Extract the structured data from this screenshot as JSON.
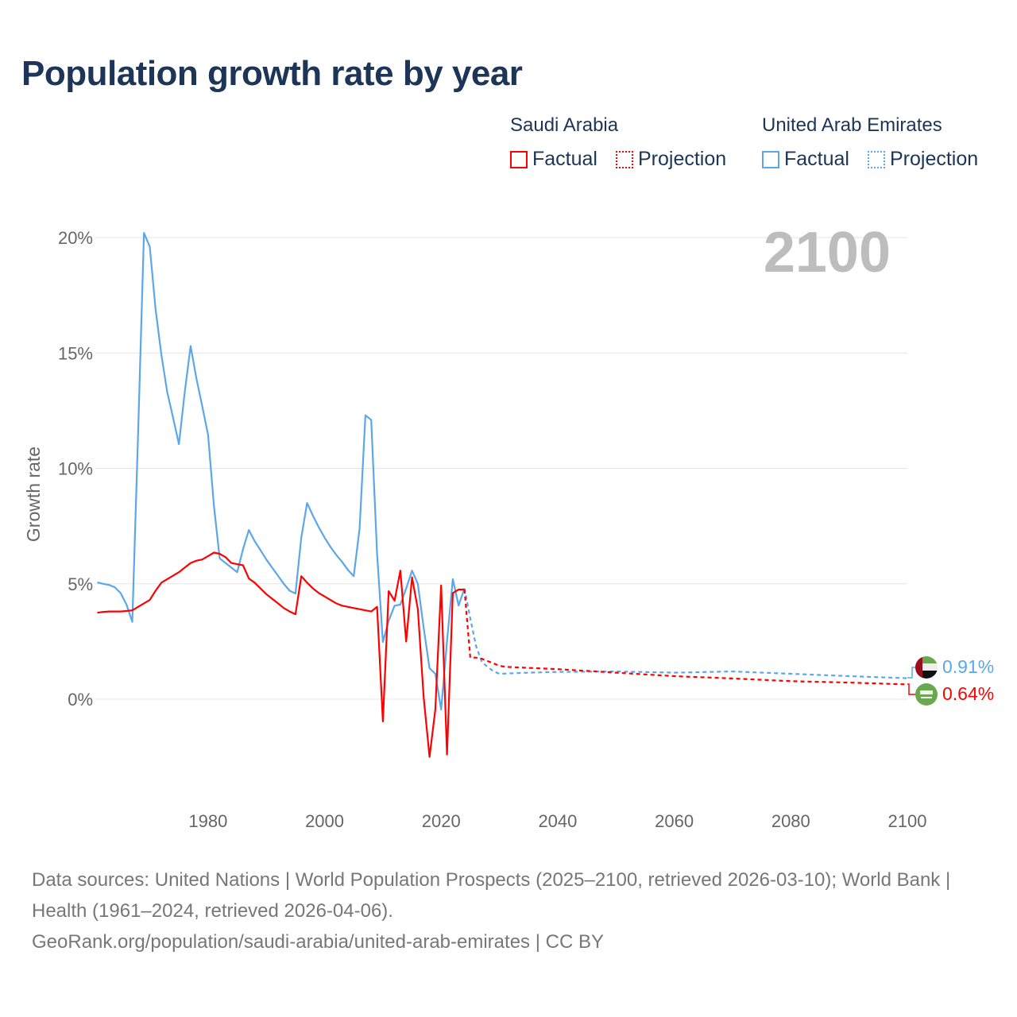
{
  "title": "Population growth rate by year",
  "legend": {
    "groups": [
      {
        "name": "Saudi Arabia",
        "color": "#ff0000",
        "factual": "Factual",
        "projection": "Projection"
      },
      {
        "name": "United Arab Emirates",
        "color": "#5ba7ea",
        "factual": "Factual",
        "projection": "Projection"
      }
    ]
  },
  "year_label": "2100",
  "end_labels": {
    "uae": "0.91%",
    "saudi": "0.64%"
  },
  "footer": {
    "line1": "Data sources: United Nations | World Population Prospects (2025–2100, retrieved 2026-03-10); World Bank | Health (1961–2024, retrieved 2026-04-06).",
    "line2": "GeoRank.org/population/saudi-arabia/united-arab-emirates | CC BY"
  },
  "chart_data": {
    "type": "line",
    "title": "Population growth rate by year",
    "xlabel": "",
    "ylabel": "Growth rate",
    "xlim": [
      1961,
      2100
    ],
    "ylim": [
      -4,
      20
    ],
    "yticks": [
      0,
      5,
      10,
      15,
      20
    ],
    "ytick_labels": [
      "0%",
      "5%",
      "10%",
      "15%",
      "20%"
    ],
    "xticks": [
      1980,
      2000,
      2020,
      2040,
      2060,
      2080,
      2100
    ],
    "xtick_labels": [
      "1980",
      "2000",
      "2020",
      "2040",
      "2060",
      "2080",
      "2100"
    ],
    "grid": true,
    "legend_position": "top-right",
    "series": [
      {
        "name": "United Arab Emirates Factual",
        "color": "#5ba7ea",
        "dash": false,
        "x": [
          1961,
          1962,
          1963,
          1964,
          1965,
          1966,
          1967,
          1968,
          1969,
          1970,
          1971,
          1972,
          1973,
          1974,
          1975,
          1976,
          1977,
          1978,
          1979,
          1980,
          1981,
          1982,
          1983,
          1984,
          1985,
          1986,
          1987,
          1988,
          1989,
          1990,
          1991,
          1992,
          1993,
          1994,
          1995,
          1996,
          1997,
          1998,
          1999,
          2000,
          2001,
          2002,
          2003,
          2004,
          2005,
          2006,
          2007,
          2008,
          2009,
          2010,
          2011,
          2012,
          2013,
          2014,
          2015,
          2016,
          2017,
          2018,
          2019,
          2020,
          2021,
          2022,
          2023,
          2024
        ],
        "values": [
          5.06,
          5.0,
          4.95,
          4.85,
          4.6,
          4.1,
          3.35,
          11.5,
          20.2,
          19.6,
          16.9,
          14.9,
          13.3,
          12.2,
          11.05,
          13.3,
          15.3,
          13.9,
          12.7,
          11.45,
          8.4,
          6.1,
          5.9,
          5.7,
          5.5,
          6.5,
          7.33,
          6.85,
          6.45,
          6.05,
          5.7,
          5.35,
          5.0,
          4.7,
          4.58,
          7.0,
          8.5,
          7.95,
          7.45,
          7.0,
          6.6,
          6.25,
          5.95,
          5.6,
          5.33,
          7.4,
          12.3,
          12.1,
          6.3,
          2.48,
          3.4,
          4.05,
          4.1,
          4.8,
          5.57,
          5.0,
          3.1,
          1.34,
          1.1,
          -0.45,
          2.5,
          5.2,
          4.06,
          4.8
        ]
      },
      {
        "name": "United Arab Emirates Projection",
        "color": "#5ba7ea",
        "dash": true,
        "x": [
          2024,
          2025,
          2026,
          2027,
          2028,
          2029,
          2030,
          2035,
          2040,
          2050,
          2060,
          2070,
          2080,
          2090,
          2100
        ],
        "values": [
          4.8,
          3.5,
          2.3,
          1.6,
          1.4,
          1.2,
          1.1,
          1.15,
          1.18,
          1.2,
          1.15,
          1.2,
          1.1,
          1.0,
          0.91
        ]
      },
      {
        "name": "Saudi Arabia Factual",
        "color": "#ff0000",
        "dash": false,
        "x": [
          1961,
          1962,
          1963,
          1964,
          1965,
          1966,
          1967,
          1968,
          1969,
          1970,
          1971,
          1972,
          1973,
          1974,
          1975,
          1976,
          1977,
          1978,
          1979,
          1980,
          1981,
          1982,
          1983,
          1984,
          1985,
          1986,
          1987,
          1988,
          1989,
          1990,
          1991,
          1992,
          1993,
          1994,
          1995,
          1996,
          1997,
          1998,
          1999,
          2000,
          2001,
          2002,
          2003,
          2004,
          2005,
          2006,
          2007,
          2008,
          2009,
          2010,
          2011,
          2012,
          2013,
          2014,
          2015,
          2016,
          2017,
          2018,
          2019,
          2020,
          2021,
          2022,
          2023,
          2024
        ],
        "values": [
          3.75,
          3.78,
          3.8,
          3.8,
          3.8,
          3.82,
          3.85,
          4.0,
          4.15,
          4.3,
          4.7,
          5.05,
          5.2,
          5.35,
          5.5,
          5.7,
          5.9,
          6.0,
          6.05,
          6.2,
          6.35,
          6.3,
          6.15,
          5.9,
          5.85,
          5.8,
          5.23,
          5.05,
          4.8,
          4.55,
          4.35,
          4.15,
          3.95,
          3.8,
          3.68,
          5.33,
          5.05,
          4.8,
          4.6,
          4.45,
          4.3,
          4.15,
          4.05,
          4.0,
          3.95,
          3.9,
          3.85,
          3.8,
          4.0,
          -0.96,
          4.68,
          4.27,
          5.57,
          2.5,
          5.28,
          3.9,
          0.1,
          -2.5,
          -0.45,
          4.93,
          -2.4,
          4.6,
          4.75,
          4.75
        ]
      },
      {
        "name": "Saudi Arabia Projection",
        "color": "#ff0000",
        "dash": true,
        "x": [
          2024,
          2025,
          2026,
          2027,
          2028,
          2029,
          2030,
          2031,
          2040,
          2050,
          2060,
          2070,
          2080,
          2090,
          2100
        ],
        "values": [
          4.75,
          1.8,
          1.8,
          1.75,
          1.65,
          1.55,
          1.45,
          1.4,
          1.3,
          1.15,
          1.0,
          0.9,
          0.78,
          0.72,
          0.64
        ]
      }
    ]
  }
}
